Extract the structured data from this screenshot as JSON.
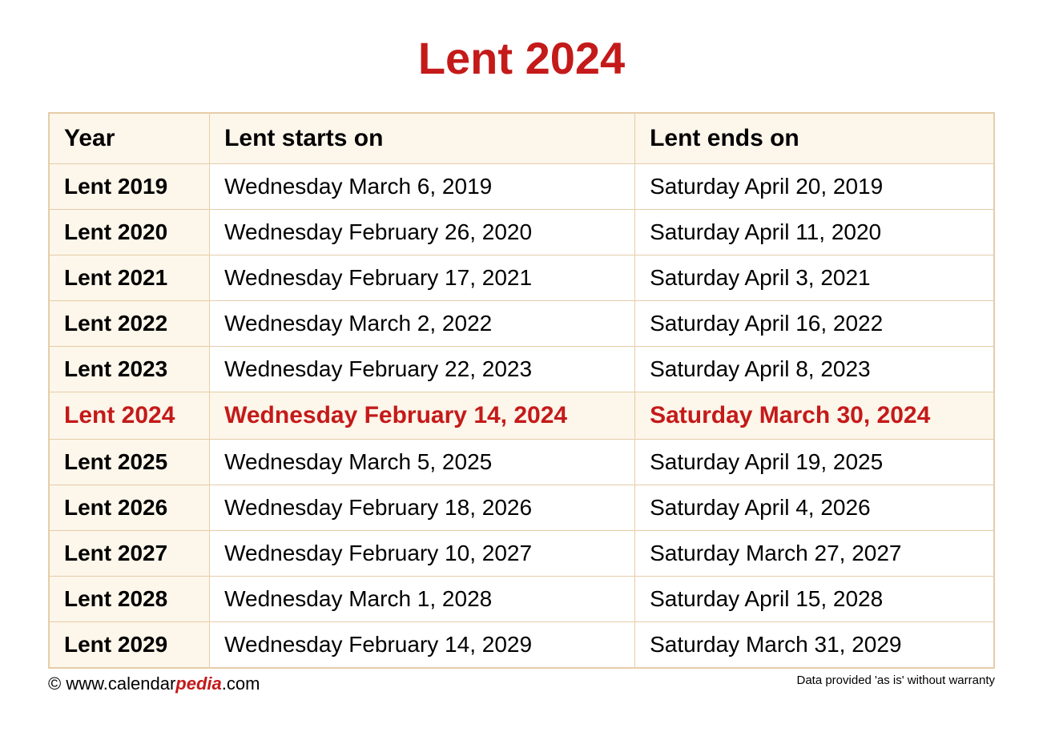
{
  "title": "Lent 2024",
  "table": {
    "headers": {
      "year": "Year",
      "starts": "Lent starts on",
      "ends": "Lent ends on"
    },
    "rows": [
      {
        "year": "Lent 2019",
        "starts": "Wednesday March 6, 2019",
        "ends": "Saturday April 20, 2019",
        "highlight": false
      },
      {
        "year": "Lent 2020",
        "starts": "Wednesday February 26, 2020",
        "ends": "Saturday April 11, 2020",
        "highlight": false
      },
      {
        "year": "Lent 2021",
        "starts": "Wednesday February 17, 2021",
        "ends": "Saturday April 3, 2021",
        "highlight": false
      },
      {
        "year": "Lent 2022",
        "starts": "Wednesday March 2, 2022",
        "ends": "Saturday April 16, 2022",
        "highlight": false
      },
      {
        "year": "Lent 2023",
        "starts": "Wednesday February 22, 2023",
        "ends": "Saturday April 8, 2023",
        "highlight": false
      },
      {
        "year": "Lent 2024",
        "starts": "Wednesday February 14, 2024",
        "ends": "Saturday March 30, 2024",
        "highlight": true
      },
      {
        "year": "Lent 2025",
        "starts": "Wednesday March 5, 2025",
        "ends": "Saturday April 19, 2025",
        "highlight": false
      },
      {
        "year": "Lent 2026",
        "starts": "Wednesday February 18, 2026",
        "ends": "Saturday April 4, 2026",
        "highlight": false
      },
      {
        "year": "Lent 2027",
        "starts": "Wednesday February 10, 2027",
        "ends": "Saturday March 27, 2027",
        "highlight": false
      },
      {
        "year": "Lent 2028",
        "starts": "Wednesday March 1, 2028",
        "ends": "Saturday April 15, 2028",
        "highlight": false
      },
      {
        "year": "Lent 2029",
        "starts": "Wednesday February 14, 2029",
        "ends": "Saturday March 31, 2029",
        "highlight": false
      }
    ]
  },
  "footer": {
    "copyright_prefix": "© www.calendar",
    "copyright_pedia": "pedia",
    "copyright_suffix": ".com",
    "disclaimer": "Data provided 'as is' without warranty"
  },
  "styling": {
    "title_color": "#c41a1a",
    "highlight_color": "#c41a1a",
    "header_bg": "#fdf6ea",
    "year_col_bg": "#fdf6ea",
    "border_color": "#e5cda9",
    "body_bg": "#ffffff",
    "title_fontsize": 56,
    "header_fontsize": 30,
    "cell_fontsize": 28,
    "highlight_fontsize": 30,
    "footer_fontsize": 22,
    "disclaimer_fontsize": 15
  }
}
